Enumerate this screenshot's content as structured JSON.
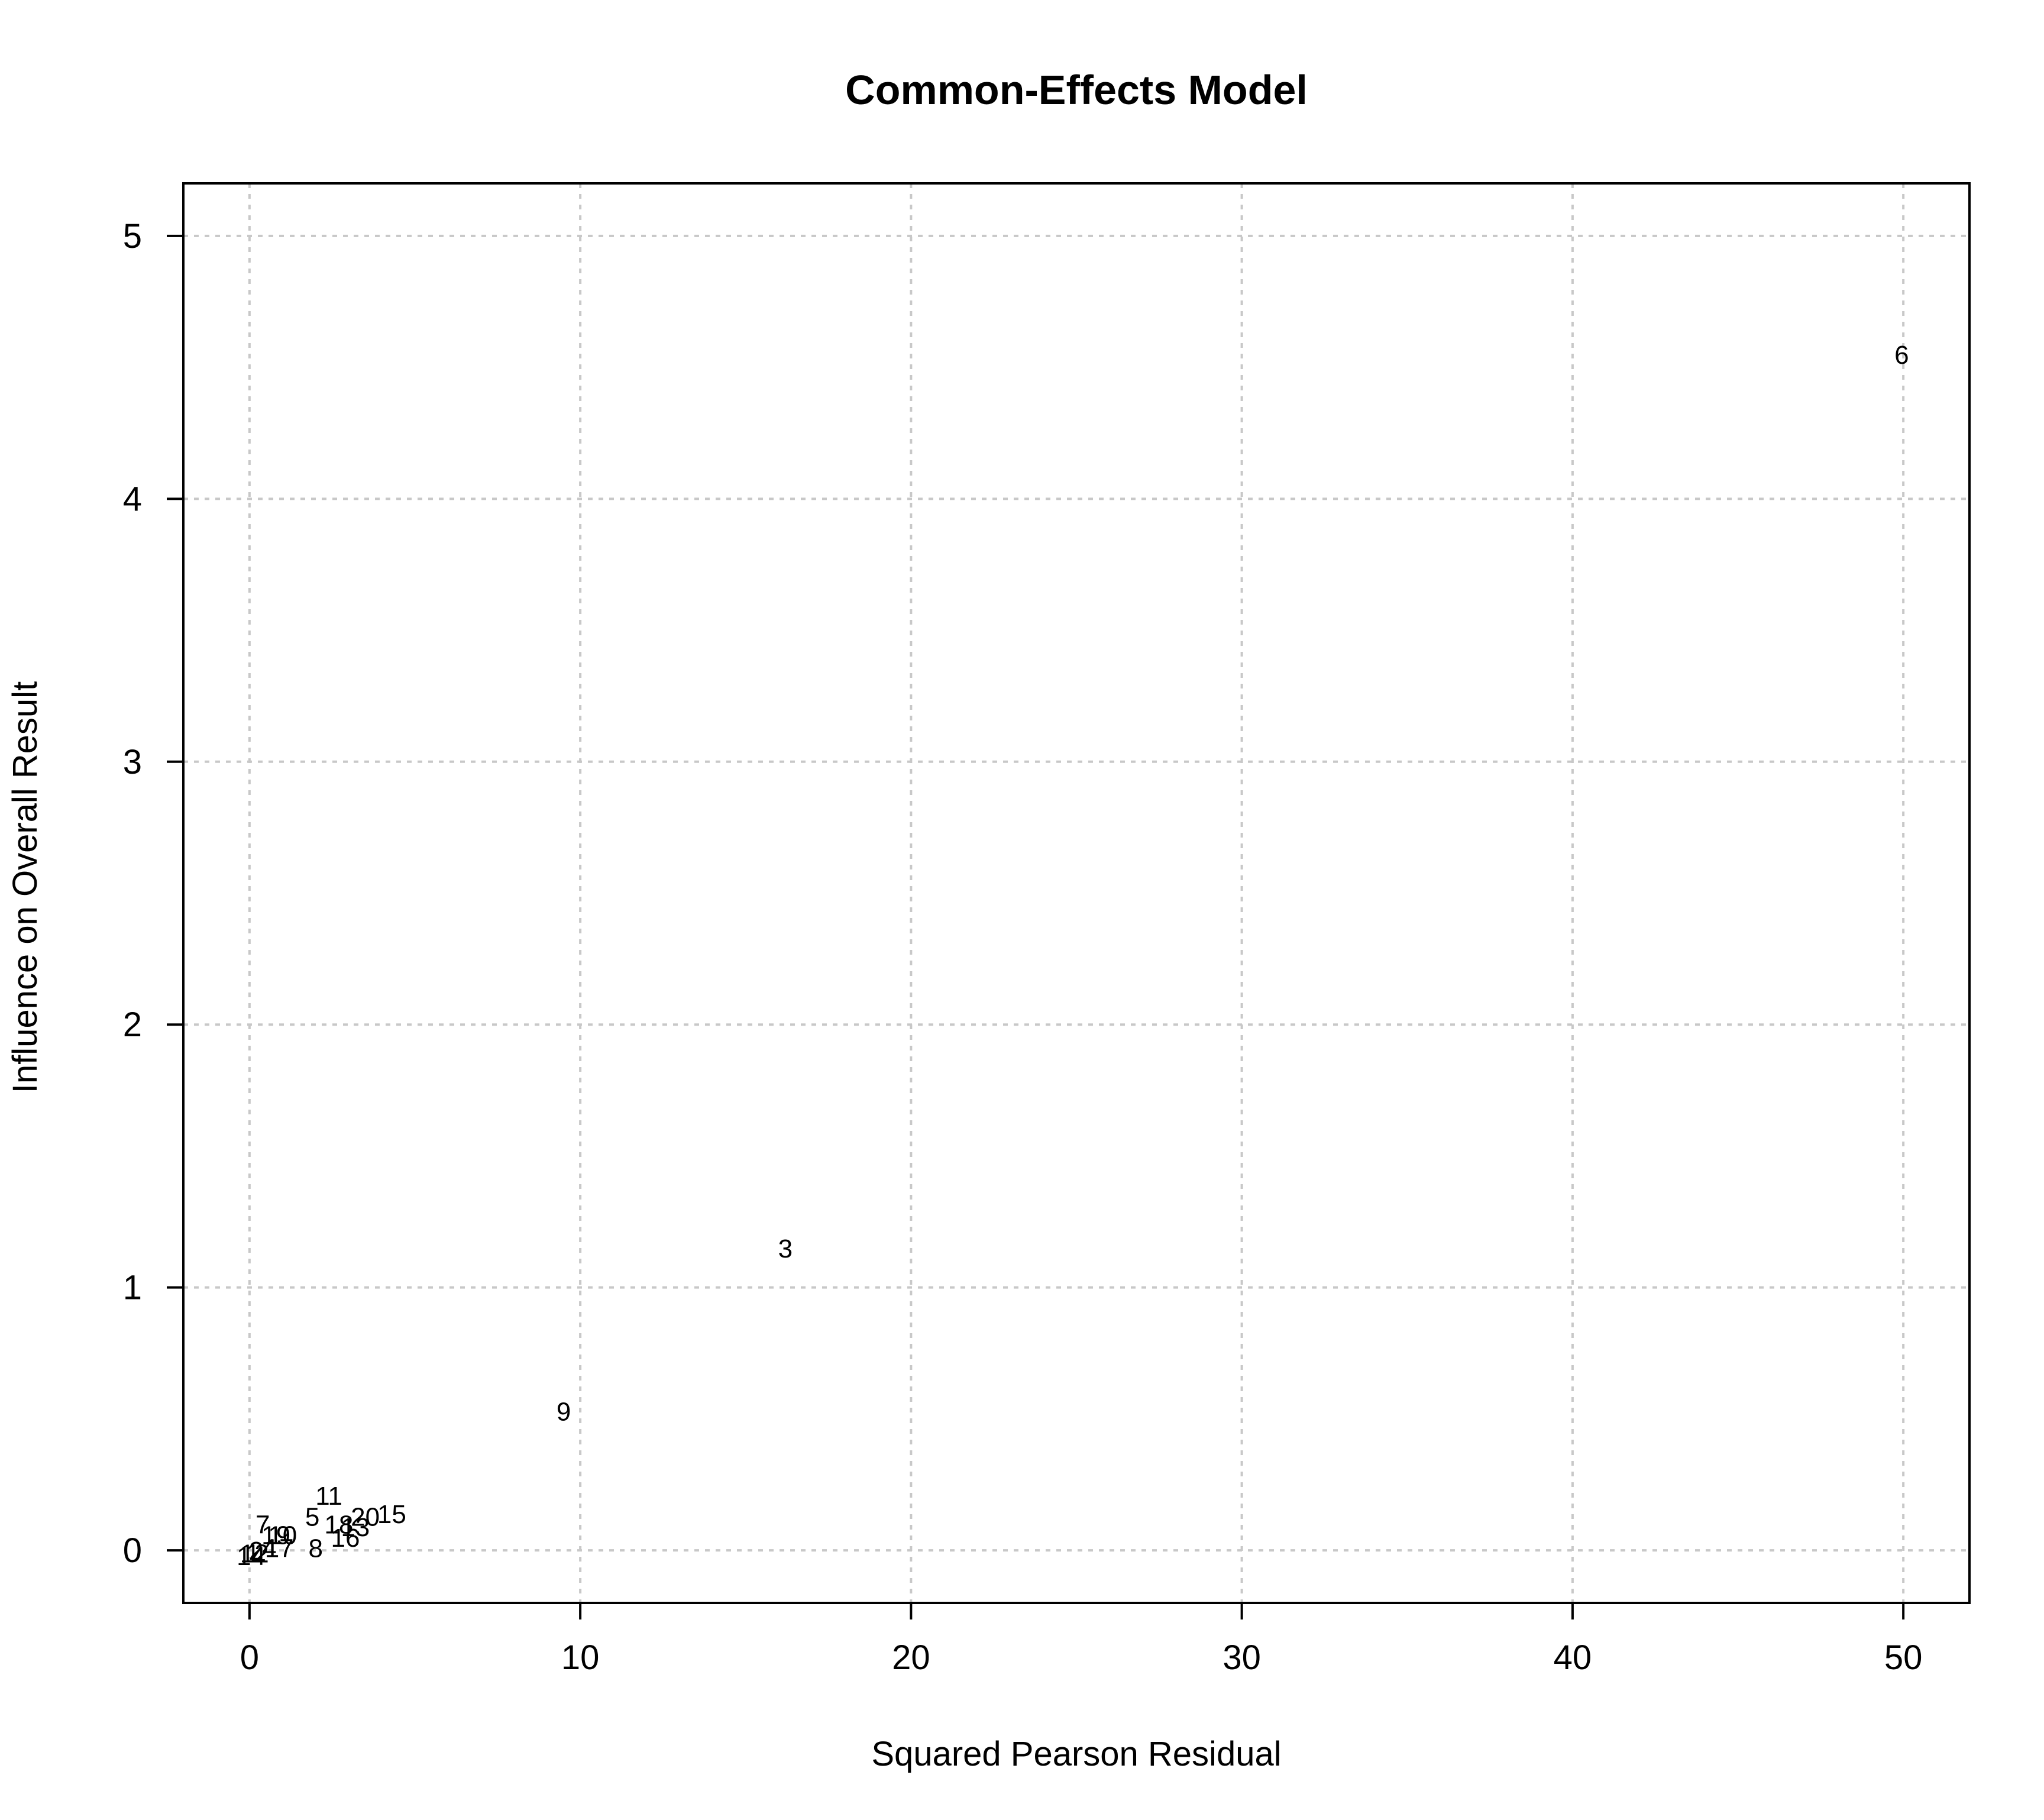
{
  "chart_data": {
    "type": "scatter",
    "title": "Common-Effects Model",
    "xlabel": "Squared Pearson Residual",
    "ylabel": "Influence on Overall Result",
    "xlim": [
      -2,
      52
    ],
    "ylim": [
      -0.2,
      5.2
    ],
    "xticks": [
      0,
      10,
      20,
      30,
      40,
      50
    ],
    "yticks": [
      0,
      1,
      2,
      3,
      4,
      5
    ],
    "grid": true,
    "marker": "study number labels",
    "points": [
      {
        "label": "1",
        "x": 0.1,
        "y": -0.01
      },
      {
        "label": "2",
        "x": 0.2,
        "y": 0.0
      },
      {
        "label": "3",
        "x": 16.2,
        "y": 1.15
      },
      {
        "label": "4",
        "x": 0.6,
        "y": 0.01
      },
      {
        "label": "5",
        "x": 1.9,
        "y": 0.13
      },
      {
        "label": "6",
        "x": 49.95,
        "y": 4.55
      },
      {
        "label": "7",
        "x": 0.4,
        "y": 0.1
      },
      {
        "label": "8",
        "x": 2.0,
        "y": 0.01
      },
      {
        "label": "9",
        "x": 9.5,
        "y": 0.53
      },
      {
        "label": "10",
        "x": 1.0,
        "y": 0.06
      },
      {
        "label": "11",
        "x": 2.4,
        "y": 0.21
      },
      {
        "label": "12",
        "x": 0.15,
        "y": -0.01
      },
      {
        "label": "13",
        "x": 3.2,
        "y": 0.09
      },
      {
        "label": "14",
        "x": 0.05,
        "y": -0.02
      },
      {
        "label": "15",
        "x": 4.3,
        "y": 0.14
      },
      {
        "label": "16",
        "x": 2.9,
        "y": 0.05
      },
      {
        "label": "17",
        "x": 0.9,
        "y": 0.01
      },
      {
        "label": "18",
        "x": 2.7,
        "y": 0.1
      },
      {
        "label": "19",
        "x": 0.8,
        "y": 0.06
      },
      {
        "label": "20",
        "x": 3.5,
        "y": 0.13
      }
    ]
  }
}
